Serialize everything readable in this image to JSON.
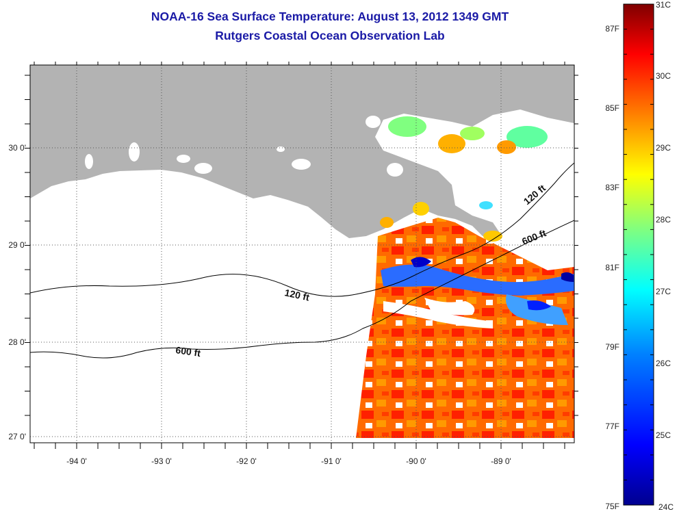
{
  "header": {
    "title_line1": "NOAA-16 Sea Surface Temperature:  August 13, 2012 1349 GMT",
    "title_line2": "Rutgers Coastal Ocean Observation Lab"
  },
  "map": {
    "lon_ticks": [
      {
        "value": -94,
        "label": "-94 0'"
      },
      {
        "value": -93,
        "label": "-93 0'"
      },
      {
        "value": -92,
        "label": "-92 0'"
      },
      {
        "value": -91,
        "label": "-91 0'"
      },
      {
        "value": -90,
        "label": "-90 0'"
      },
      {
        "value": -89,
        "label": "-89 0'"
      }
    ],
    "lat_ticks": [
      {
        "value": 30,
        "label": "30 0'"
      },
      {
        "value": 29,
        "label": "29 0'"
      },
      {
        "value": 28,
        "label": "28 0'"
      },
      {
        "value": 27,
        "label": "27 0'"
      }
    ],
    "contour_labels": [
      "120 ft",
      "600 ft",
      "120 ft",
      "600 ft"
    ],
    "land_color": "#b3b3b3"
  },
  "colorbar": {
    "fahrenheit_labels": [
      "87F",
      "85F",
      "83F",
      "81F",
      "79F",
      "77F",
      "75F"
    ],
    "celsius_labels": [
      "31C",
      "30C",
      "29C",
      "28C",
      "27C",
      "26C",
      "25C",
      "24C"
    ],
    "colors": [
      "#7f0000",
      "#ff0000",
      "#ff8000",
      "#ffff00",
      "#80ff80",
      "#00ffff",
      "#0080ff",
      "#0000ff",
      "#00008f"
    ]
  }
}
